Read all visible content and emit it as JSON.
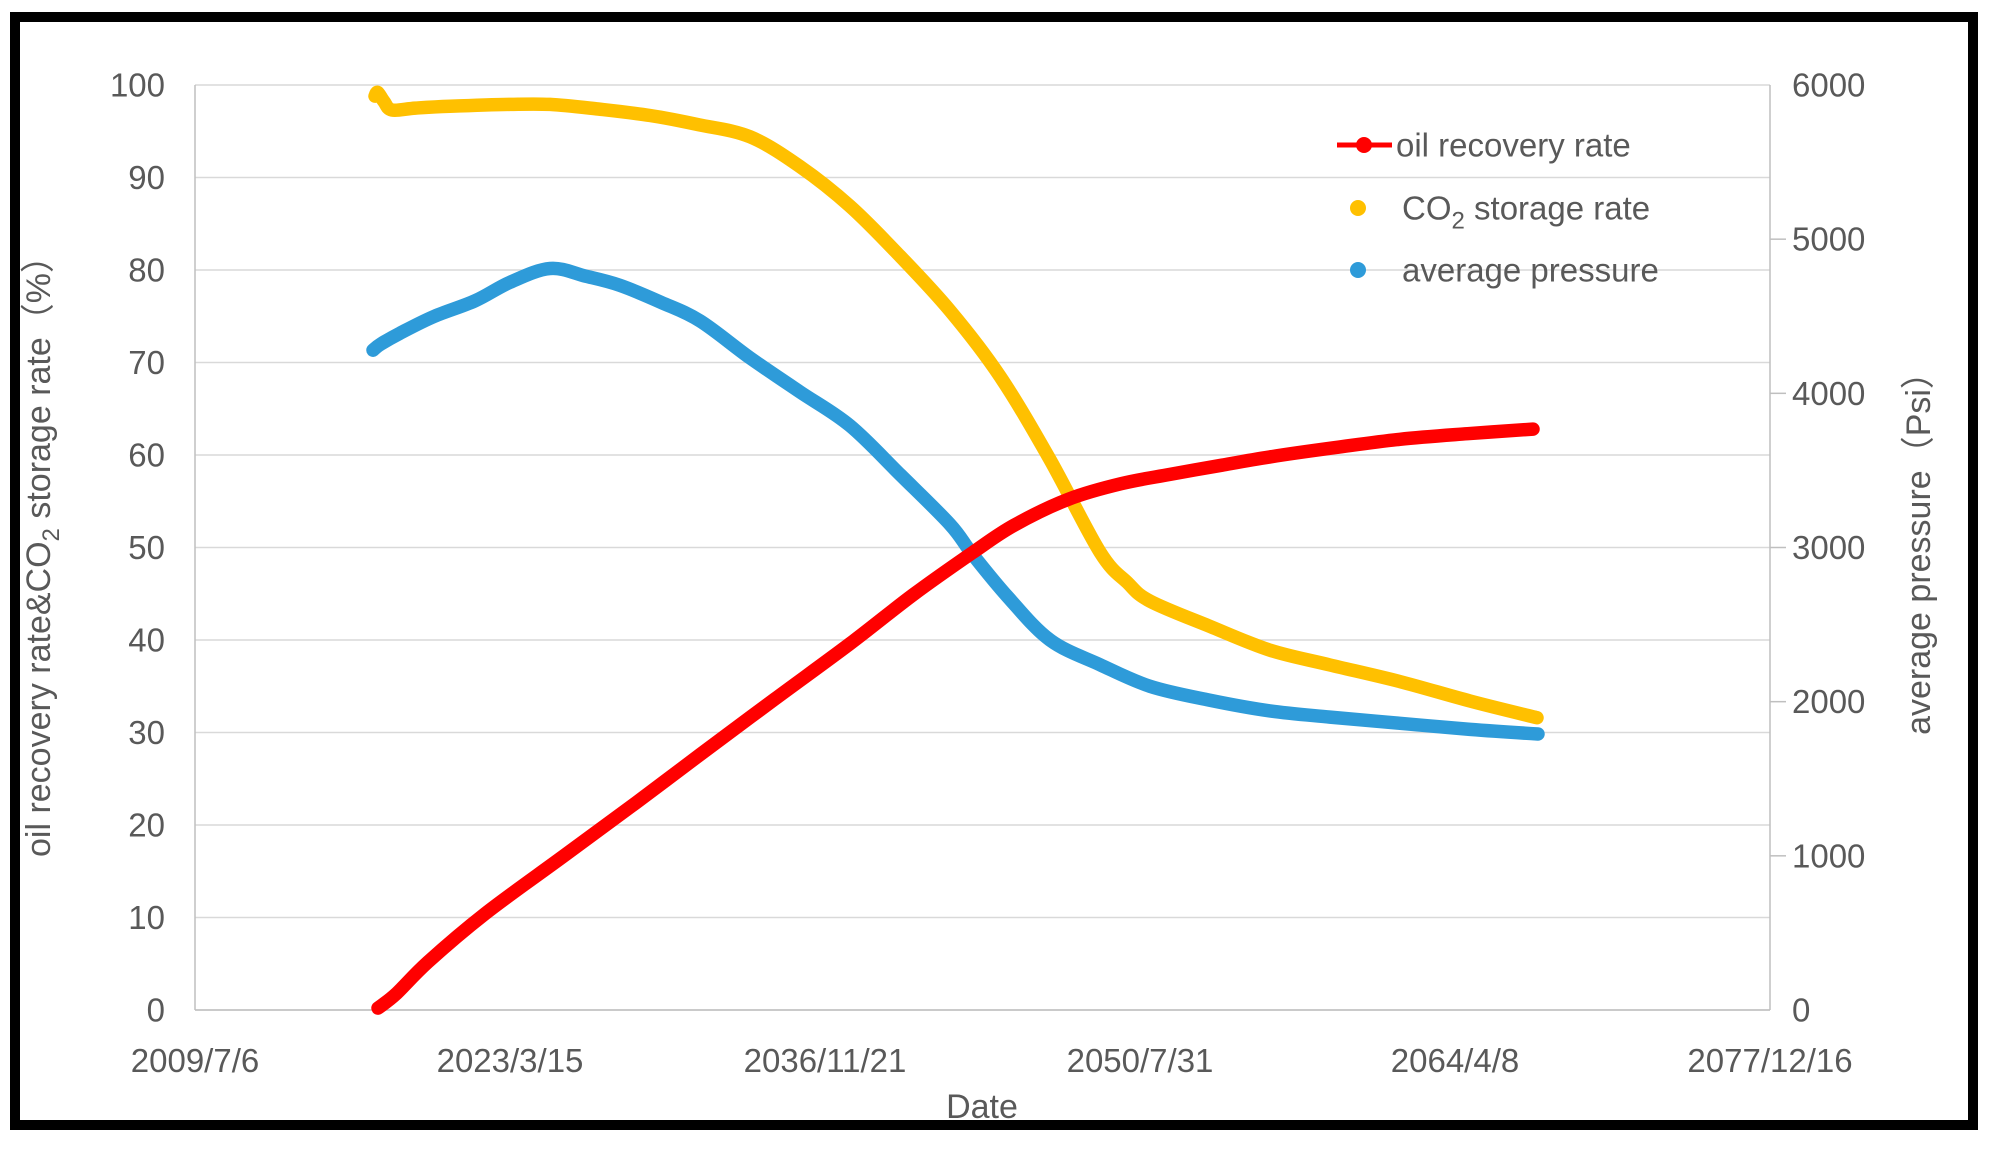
{
  "figure": {
    "kind": "excel-style scatter/line chart",
    "background": "#FFFFFF",
    "border_color": "#000000"
  },
  "colors": {
    "text": "#595959",
    "gridline": "#D9D9D9",
    "axis_line": "#BFBFBF",
    "oil_recovery": "#FF0000",
    "co2_storage": "#FFC000",
    "average_pressure": "#2E9BD9"
  },
  "axes": {
    "x": {
      "title": "Date",
      "tick_labels": [
        "2009/7/6",
        "2023/3/15",
        "2036/11/21",
        "2050/7/31",
        "2064/4/8",
        "2077/12/16"
      ],
      "tick_spacing_days": 5000,
      "range_days": [
        0,
        25000
      ]
    },
    "left": {
      "title_pre": "oil recovery rate&CO",
      "title_sub": "2",
      "title_post": " storage rate（%）",
      "tick_labels": [
        "100",
        "90",
        "80",
        "70",
        "60",
        "50",
        "40",
        "30",
        "20",
        "10",
        "0"
      ],
      "range": [
        0,
        100
      ]
    },
    "right": {
      "title": "average pressure（Psi）",
      "tick_labels": [
        "6000",
        "5000",
        "4000",
        "3000",
        "2000",
        "1000",
        "0"
      ],
      "range": [
        0,
        6000
      ]
    }
  },
  "legend": {
    "items": [
      {
        "label": "oil recovery rate",
        "marker": "line-dot",
        "color": "#FF0000"
      },
      {
        "label_pre": "CO",
        "label_sub": "2",
        "label_post": "  storage rate",
        "marker": "dot",
        "color": "#FFC000"
      },
      {
        "label": "average pressure",
        "marker": "dot",
        "color": "#2E9BD9"
      }
    ]
  },
  "chart_data": {
    "type": "line",
    "title": "",
    "xlabel": "Date",
    "x_unit": "days since 2009/7/6",
    "x_tick_dates": [
      "2009/7/6",
      "2023/3/15",
      "2036/11/21",
      "2050/7/31",
      "2064/4/8",
      "2077/12/16"
    ],
    "left_ylabel": "oil recovery rate&CO2 storage rate (%)",
    "right_ylabel": "average pressure (Psi)",
    "left_ylim": [
      0,
      100
    ],
    "right_ylim": [
      0,
      6000
    ],
    "grid": "horizontal-major",
    "legend_position": "inside-top-right",
    "series": [
      {
        "id": "co2-storage-rate",
        "name": "CO2 storage rate",
        "axis": "left",
        "unit": "%",
        "color": "#FFC000",
        "points": [
          [
            2857,
            98.8
          ],
          [
            2900,
            99.2
          ],
          [
            3000,
            98.2
          ],
          [
            3127,
            97.3
          ],
          [
            3500,
            97.5
          ],
          [
            4048,
            97.7
          ],
          [
            5000,
            97.9
          ],
          [
            5635,
            97.9
          ],
          [
            6400,
            97.4
          ],
          [
            7222,
            96.7
          ],
          [
            8000,
            95.7
          ],
          [
            8810,
            94.4
          ],
          [
            9600,
            91.2
          ],
          [
            10397,
            86.9
          ],
          [
            11190,
            81.5
          ],
          [
            11984,
            75.6
          ],
          [
            12778,
            68.5
          ],
          [
            13571,
            59.5
          ],
          [
            14365,
            49.5
          ],
          [
            14800,
            46.2
          ],
          [
            15159,
            44.2
          ],
          [
            16100,
            41.5
          ],
          [
            17063,
            38.9
          ],
          [
            18016,
            37.3
          ],
          [
            19127,
            35.5
          ],
          [
            20238,
            33.4
          ],
          [
            21301,
            31.6
          ]
        ]
      },
      {
        "id": "average-pressure",
        "name": "average pressure",
        "axis": "right",
        "unit": "Psi",
        "color": "#2E9BD9",
        "points": [
          [
            2825,
            4280
          ],
          [
            2950,
            4320
          ],
          [
            3254,
            4390
          ],
          [
            3800,
            4500
          ],
          [
            4444,
            4600
          ],
          [
            5000,
            4720
          ],
          [
            5635,
            4810
          ],
          [
            6200,
            4760
          ],
          [
            6746,
            4700
          ],
          [
            7400,
            4590
          ],
          [
            8016,
            4470
          ],
          [
            8810,
            4230
          ],
          [
            9600,
            4010
          ],
          [
            10397,
            3790
          ],
          [
            11200,
            3470
          ],
          [
            11984,
            3150
          ],
          [
            12333,
            2960
          ],
          [
            12900,
            2680
          ],
          [
            13571,
            2400
          ],
          [
            14365,
            2240
          ],
          [
            15159,
            2100
          ],
          [
            16100,
            2010
          ],
          [
            17063,
            1940
          ],
          [
            18016,
            1900
          ],
          [
            19127,
            1860
          ],
          [
            20238,
            1820
          ],
          [
            21317,
            1790
          ]
        ]
      },
      {
        "id": "oil-recovery-rate",
        "name": "oil recovery rate",
        "axis": "left",
        "unit": "%",
        "color": "#FF0000",
        "points": [
          [
            2905,
            0.2
          ],
          [
            3200,
            1.8
          ],
          [
            3700,
            5.2
          ],
          [
            4603,
            10.4
          ],
          [
            5841,
            16.6
          ],
          [
            7000,
            22.4
          ],
          [
            8016,
            27.6
          ],
          [
            9200,
            33.6
          ],
          [
            10397,
            39.6
          ],
          [
            11400,
            44.9
          ],
          [
            12333,
            49.4
          ],
          [
            13000,
            52.4
          ],
          [
            13857,
            55.2
          ],
          [
            14700,
            56.9
          ],
          [
            15476,
            57.9
          ],
          [
            16300,
            58.9
          ],
          [
            17063,
            59.8
          ],
          [
            18100,
            60.8
          ],
          [
            19127,
            61.7
          ],
          [
            20200,
            62.3
          ],
          [
            21238,
            62.8
          ]
        ]
      }
    ]
  }
}
